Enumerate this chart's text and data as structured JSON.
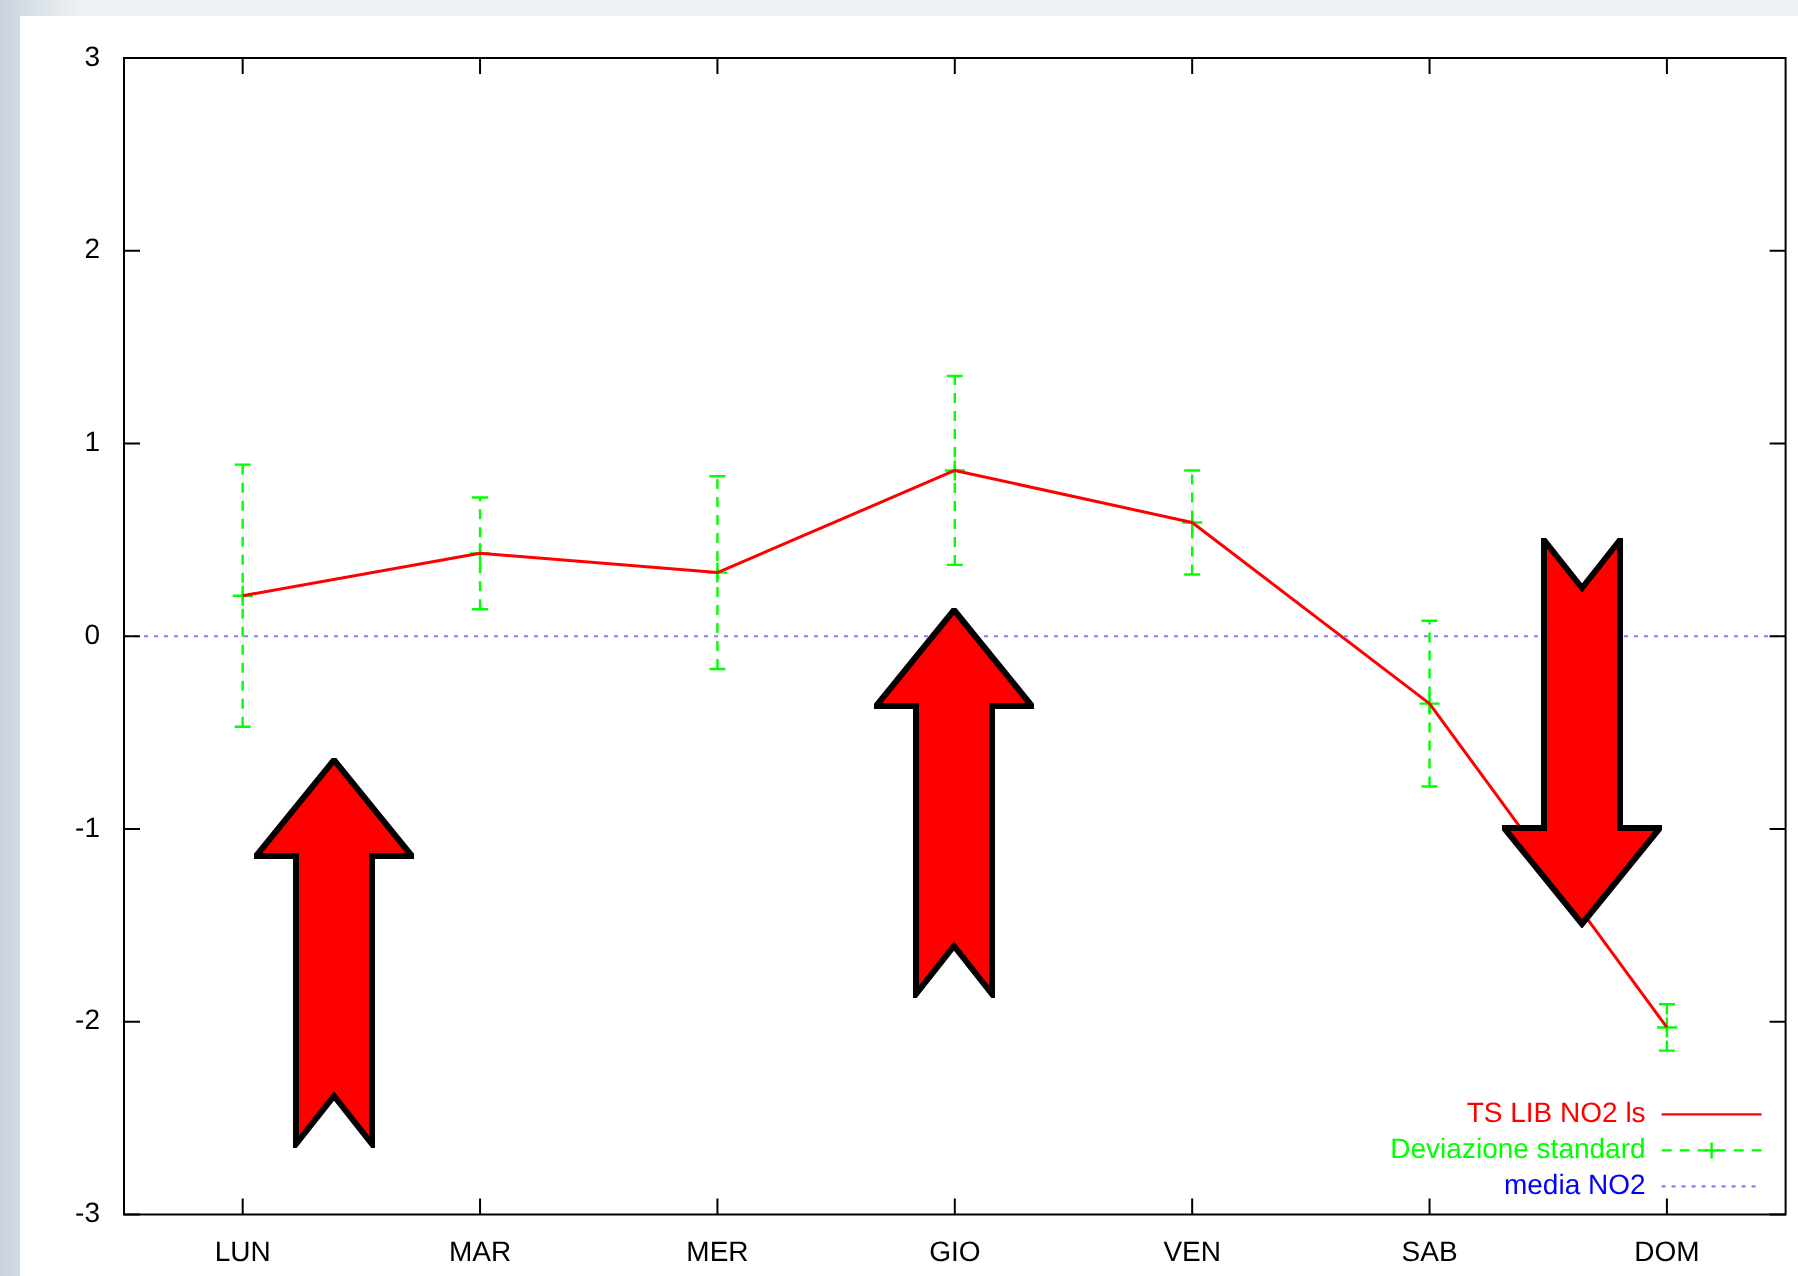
{
  "chart_data": {
    "type": "line",
    "categories": [
      "LUN",
      "MAR",
      "MER",
      "GIO",
      "VEN",
      "SAB",
      "DOM"
    ],
    "ylim": [
      -3,
      3
    ],
    "yticks": [
      -3,
      -2,
      -1,
      0,
      1,
      2,
      3
    ],
    "grid": false,
    "legend": "bottom right",
    "series": [
      {
        "name": "TS LIB NO2 ls",
        "color": "#ff0000",
        "marker": "none",
        "line_style": "solid",
        "values": [
          0.21,
          0.43,
          0.33,
          0.86,
          0.59,
          -0.35,
          -2.03
        ]
      },
      {
        "name": "Deviazione standard",
        "type": "scatter",
        "color": "#00ff00",
        "marker": "cross",
        "line_style": "dashed",
        "values": [
          0.21,
          0.43,
          0.33,
          0.86,
          0.59,
          -0.35,
          -2.03
        ],
        "errors": [
          0.68,
          0.29,
          0.5,
          0.49,
          0.27,
          0.43,
          0.12
        ]
      }
    ],
    "ref_lines": [
      {
        "axis": "y",
        "value": 0,
        "label": "media NO2",
        "color": "#0000ff",
        "line_style": "dotted"
      }
    ]
  }
}
